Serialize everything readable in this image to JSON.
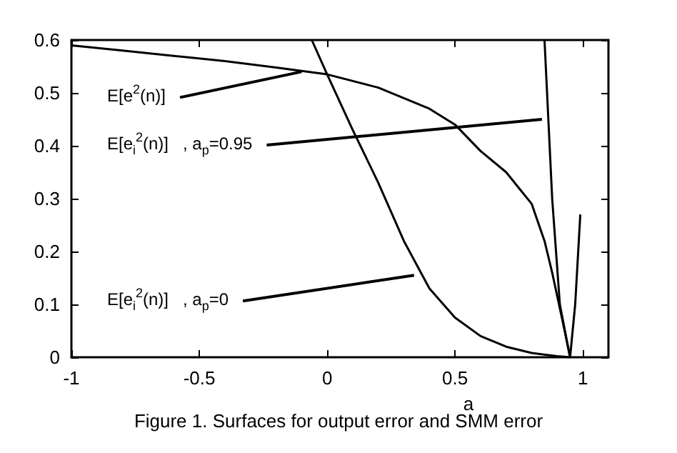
{
  "chart_data": {
    "type": "line",
    "title": "Figure 1. Surfaces for output error and SMM error",
    "xlabel": "a",
    "xlim": [
      -1,
      1.1
    ],
    "xticks": [
      -1,
      -0.5,
      0,
      0.5,
      1
    ],
    "ylim": [
      0,
      0.6
    ],
    "yticks": [
      0,
      0.1,
      0.2,
      0.3,
      0.4,
      0.5,
      0.6
    ],
    "grid": false,
    "marker": "none",
    "line_style": "solid",
    "series": [
      {
        "color": "#000000",
        "x": [
          -1,
          -0.8,
          -0.6,
          -0.4,
          -0.2,
          0,
          0.2,
          0.4,
          0.5,
          0.6,
          0.7,
          0.75,
          0.8,
          0.85,
          0.88,
          0.92,
          0.95
        ],
        "values": [
          0.59,
          0.58,
          0.57,
          0.56,
          0.548,
          0.535,
          0.51,
          0.47,
          0.44,
          0.39,
          0.35,
          0.32,
          0.29,
          0.22,
          0.16,
          0.07,
          0
        ]
      },
      {
        "color": "#000000",
        "x": [
          -0.06,
          0,
          0.1,
          0.2,
          0.3,
          0.4,
          0.5,
          0.6,
          0.7,
          0.8,
          0.9,
          0.95
        ],
        "values": [
          0.6,
          0.535,
          0.43,
          0.33,
          0.22,
          0.13,
          0.075,
          0.04,
          0.02,
          0.008,
          0.002,
          0
        ]
      },
      {
        "color": "#000000",
        "x": [
          0.85,
          0.88,
          0.91,
          0.95,
          0.97,
          0.99
        ],
        "values": [
          0.6,
          0.3,
          0.1,
          0,
          0.1,
          0.27
        ]
      }
    ],
    "annotations": [
      {
        "text": "E[e$^{2}$(n)]",
        "x": -0.1,
        "y": 0.54
      },
      {
        "text": "E[e$_{i}$$^{2}$(n)]   , a$_{p}$=0.95",
        "x": 0.84,
        "y": 0.45
      },
      {
        "text": "E[e$_{i}$$^{2}$(n)]   , a$_{p}$=0",
        "x": 0.34,
        "y": 0.155
      }
    ]
  }
}
